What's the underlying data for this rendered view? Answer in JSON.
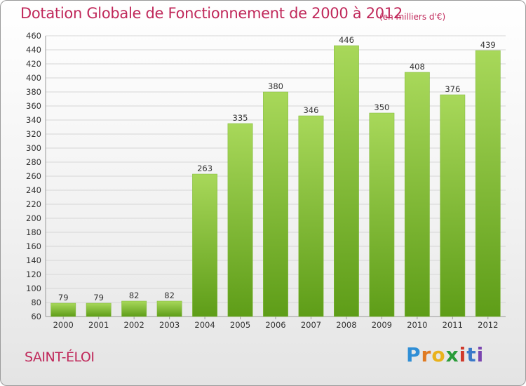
{
  "header": {
    "title": "Dotation Globale de Fonctionnement de 2000 à 2012",
    "subtitle": "(en milliers d'€)"
  },
  "footer": {
    "town": "SAINT-ÉLOI",
    "logo_letters": [
      "P",
      "r",
      "o",
      "x",
      "i",
      "t",
      "i"
    ]
  },
  "colors": {
    "title": "#c0285a",
    "bar_light": "#a8d85a",
    "bar_dark": "#5e9d18",
    "grid": "#d6d6d6"
  },
  "chart_data": {
    "type": "bar",
    "title": "Dotation Globale de Fonctionnement de 2000 à 2012",
    "subtitle": "(en milliers d'€)",
    "xlabel": "",
    "ylabel": "",
    "categories": [
      "2000",
      "2001",
      "2002",
      "2003",
      "2004",
      "2005",
      "2006",
      "2007",
      "2008",
      "2009",
      "2010",
      "2011",
      "2012"
    ],
    "values": [
      79,
      79,
      82,
      82,
      263,
      335,
      380,
      346,
      446,
      350,
      408,
      376,
      439
    ],
    "data_labels": [
      "79",
      "79",
      "82",
      "82",
      "263",
      "335",
      "380",
      "346",
      "446",
      "350",
      "408",
      "376",
      "439"
    ],
    "ylim": [
      60,
      460
    ],
    "yticks": [
      60,
      80,
      100,
      120,
      140,
      160,
      180,
      200,
      220,
      240,
      260,
      280,
      300,
      320,
      340,
      360,
      380,
      400,
      420,
      440,
      460
    ],
    "grid": true,
    "legend": "none"
  }
}
